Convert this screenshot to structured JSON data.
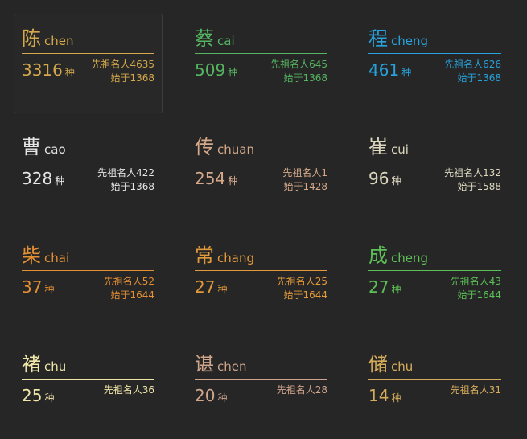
{
  "surnames": [
    {
      "hanzi": "陈",
      "pinyin": "chen",
      "count": "3316",
      "unit": "种",
      "ancestors": "先祖名人4635",
      "since": "始于1368",
      "color": "#d4a84b"
    },
    {
      "hanzi": "蔡",
      "pinyin": "cai",
      "count": "509",
      "unit": "种",
      "ancestors": "先祖名人645",
      "since": "始于1368",
      "color": "#56b561"
    },
    {
      "hanzi": "程",
      "pinyin": "cheng",
      "count": "461",
      "unit": "种",
      "ancestors": "先祖名人626",
      "since": "始于1368",
      "color": "#27a2dc"
    },
    {
      "hanzi": "曹",
      "pinyin": "cao",
      "count": "328",
      "unit": "种",
      "ancestors": "先祖名人422",
      "since": "始于1368",
      "color": "#e6e6e6"
    },
    {
      "hanzi": "传",
      "pinyin": "chuan",
      "count": "254",
      "unit": "种",
      "ancestors": "先祖名人1",
      "since": "始于1428",
      "color": "#d6a98a"
    },
    {
      "hanzi": "崔",
      "pinyin": "cui",
      "count": "96",
      "unit": "种",
      "ancestors": "先祖名人132",
      "since": "始于1588",
      "color": "#ddd7bf"
    },
    {
      "hanzi": "柴",
      "pinyin": "chai",
      "count": "37",
      "unit": "种",
      "ancestors": "先祖名人52",
      "since": "始于1644",
      "color": "#e48f33"
    },
    {
      "hanzi": "常",
      "pinyin": "chang",
      "count": "27",
      "unit": "种",
      "ancestors": "先祖名人25",
      "since": "始于1644",
      "color": "#e39a3a"
    },
    {
      "hanzi": "成",
      "pinyin": "cheng",
      "count": "27",
      "unit": "种",
      "ancestors": "先祖名人43",
      "since": "始于1644",
      "color": "#5cc057"
    },
    {
      "hanzi": "褚",
      "pinyin": "chu",
      "count": "25",
      "unit": "种",
      "ancestors": "先祖名人36",
      "since": "",
      "color": "#f0e6a8"
    },
    {
      "hanzi": "谌",
      "pinyin": "chen",
      "count": "20",
      "unit": "种",
      "ancestors": "先祖名人28",
      "since": "",
      "color": "#cfa58c"
    },
    {
      "hanzi": "储",
      "pinyin": "chu",
      "count": "14",
      "unit": "种",
      "ancestors": "先祖名人31",
      "since": "",
      "color": "#d6ac5c"
    }
  ]
}
